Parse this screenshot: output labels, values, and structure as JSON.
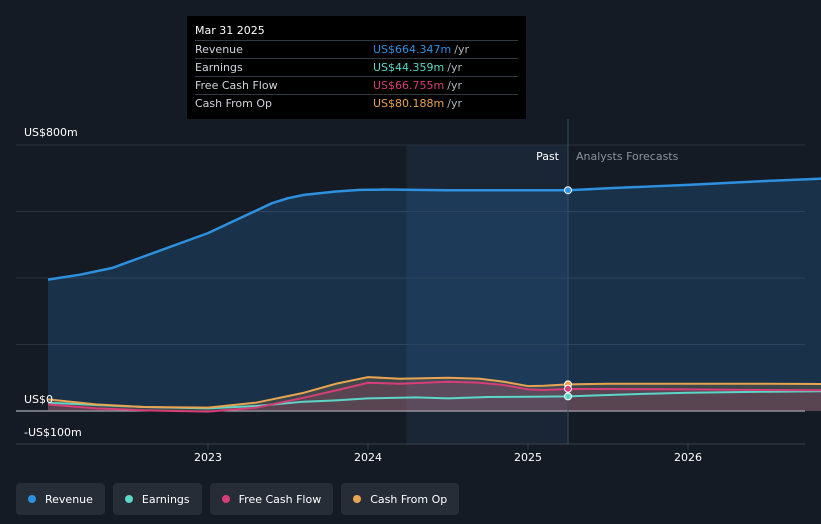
{
  "chart_data": {
    "type": "area",
    "y_axis_ticks": [
      "US$800m",
      "US$0",
      "-US$100m"
    ],
    "x_tick_labels": [
      "2023",
      "2024",
      "2025",
      "2026"
    ],
    "x_tick_values": [
      2023,
      2024,
      2025,
      2026
    ],
    "ylim": [
      -100,
      800
    ],
    "xlim": [
      2021.8,
      2026.99
    ],
    "highlight_start": 2024.24,
    "divider_x": 2025.25,
    "divider_labels": {
      "past": "Past",
      "forecast": "Analysts Forecasts"
    },
    "grid": true,
    "legend_position": "bottom-left",
    "series": [
      {
        "name": "Revenue",
        "color": "#2d91e0",
        "x": [
          2022.0,
          2022.2,
          2022.4,
          2022.6,
          2022.8,
          2023.0,
          2023.2,
          2023.4,
          2023.5,
          2023.6,
          2023.8,
          2023.95,
          2024.1,
          2024.3,
          2024.5,
          2024.75,
          2025.0,
          2025.25,
          2025.5,
          2025.75,
          2026.0,
          2026.25,
          2026.5,
          2026.75,
          2026.99
        ],
        "y": [
          395,
          410,
          430,
          465,
          500,
          535,
          580,
          625,
          640,
          650,
          660,
          665,
          666,
          665,
          664,
          664,
          664,
          664,
          670,
          675,
          680,
          686,
          692,
          697,
          702
        ]
      },
      {
        "name": "Earnings",
        "color": "#5cd6c8",
        "x": [
          2022.0,
          2022.3,
          2022.6,
          2023.0,
          2023.3,
          2023.6,
          2023.8,
          2024.0,
          2024.3,
          2024.5,
          2024.75,
          2025.0,
          2025.25,
          2025.5,
          2025.75,
          2026.0,
          2026.5,
          2026.99
        ],
        "y": [
          25,
          18,
          12,
          8,
          15,
          28,
          32,
          38,
          41,
          38,
          42,
          43,
          44,
          48,
          52,
          55,
          58,
          60
        ]
      },
      {
        "name": "Free Cash Flow",
        "color": "#d63e78",
        "x": [
          2022.0,
          2022.3,
          2022.6,
          2023.0,
          2023.3,
          2023.6,
          2023.8,
          2024.0,
          2024.2,
          2024.5,
          2024.7,
          2024.85,
          2025.0,
          2025.1,
          2025.25,
          2025.5,
          2026.0,
          2026.5,
          2026.99
        ],
        "y": [
          20,
          8,
          2,
          -2,
          10,
          40,
          62,
          85,
          82,
          88,
          85,
          78,
          65,
          63,
          66,
          66,
          65,
          63,
          62
        ]
      },
      {
        "name": "Cash From Op",
        "color": "#e8a451",
        "x": [
          2022.0,
          2022.3,
          2022.6,
          2023.0,
          2023.3,
          2023.6,
          2023.8,
          2024.0,
          2024.2,
          2024.5,
          2024.7,
          2024.85,
          2025.0,
          2025.1,
          2025.25,
          2025.5,
          2026.0,
          2026.5,
          2026.99
        ],
        "y": [
          35,
          20,
          12,
          10,
          25,
          55,
          82,
          102,
          97,
          100,
          97,
          88,
          75,
          76,
          80,
          82,
          82,
          82,
          81
        ]
      }
    ]
  },
  "tooltip": {
    "date": "Mar 31 2025",
    "rows": [
      {
        "label": "Revenue",
        "value": "US$664.347m",
        "unit": "/yr",
        "color": "#2d91e0"
      },
      {
        "label": "Earnings",
        "value": "US$44.359m",
        "unit": "/yr",
        "color": "#5cd6c8"
      },
      {
        "label": "Free Cash Flow",
        "value": "US$66.755m",
        "unit": "/yr",
        "color": "#d63e78"
      },
      {
        "label": "Cash From Op",
        "value": "US$80.188m",
        "unit": "/yr",
        "color": "#e8a451"
      }
    ]
  },
  "legend": [
    {
      "label": "Revenue",
      "color": "#2d91e0"
    },
    {
      "label": "Earnings",
      "color": "#5cd6c8"
    },
    {
      "label": "Free Cash Flow",
      "color": "#d63e78"
    },
    {
      "label": "Cash From Op",
      "color": "#e8a451"
    }
  ]
}
